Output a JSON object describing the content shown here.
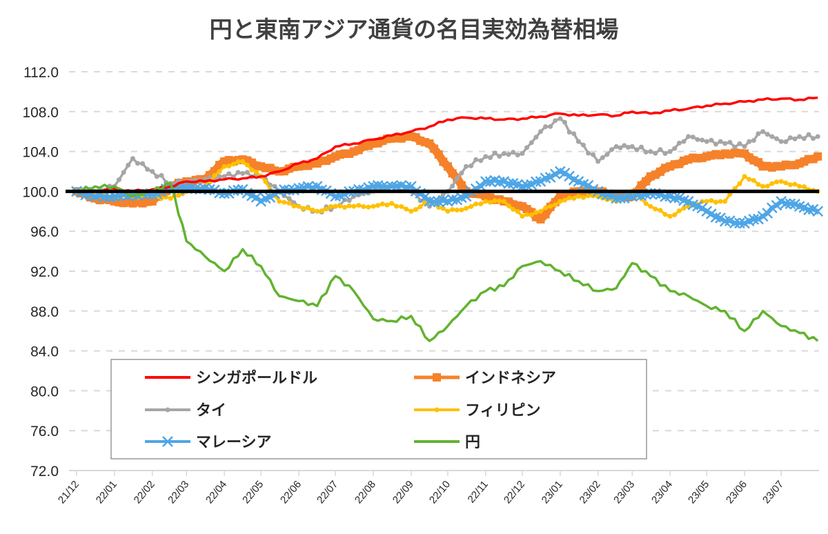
{
  "chart_data": {
    "type": "line",
    "title": "円と東南アジア通貨の名目実効為替相場",
    "xlabel": "",
    "ylabel": "",
    "ylim": [
      72,
      112
    ],
    "yticks": [
      "72.0",
      "76.0",
      "80.0",
      "84.0",
      "88.0",
      "92.0",
      "96.0",
      "100.0",
      "104.0",
      "108.0",
      "112.0"
    ],
    "xticks": [
      "21/12",
      "22/01",
      "22/02",
      "22/03",
      "22/04",
      "22/05",
      "22/06",
      "22/07",
      "22/08",
      "22/09",
      "22/10",
      "22/11",
      "22/12",
      "23/01",
      "23/02",
      "23/03",
      "23/04",
      "23/05",
      "23/06",
      "23/07"
    ],
    "grid": "horizontal dashed",
    "reference_line": 100,
    "legend_position": "bottom-left inside",
    "x": [
      "2021-12-01",
      "2021-12-16",
      "2022-01-01",
      "2022-01-16",
      "2022-02-01",
      "2022-02-16",
      "2022-03-01",
      "2022-03-16",
      "2022-04-01",
      "2022-04-16",
      "2022-05-01",
      "2022-05-16",
      "2022-06-01",
      "2022-06-16",
      "2022-07-01",
      "2022-07-16",
      "2022-08-01",
      "2022-08-16",
      "2022-09-01",
      "2022-09-16",
      "2022-10-01",
      "2022-10-16",
      "2022-11-01",
      "2022-11-16",
      "2022-12-01",
      "2022-12-16",
      "2023-01-01",
      "2023-01-16",
      "2023-02-01",
      "2023-02-16",
      "2023-03-01",
      "2023-03-16",
      "2023-04-01",
      "2023-04-16",
      "2023-05-01",
      "2023-05-16",
      "2023-06-01",
      "2023-06-16",
      "2023-07-01",
      "2023-07-16",
      "2023-07-31"
    ],
    "series": [
      {
        "name": "シンガポールドル",
        "color": "#ff0000",
        "marker": "none",
        "values": [
          100,
          100,
          100.3,
          100,
          100.2,
          100.5,
          101,
          101,
          101.2,
          101.3,
          101.5,
          102,
          102.8,
          103.3,
          104.5,
          104.8,
          105.2,
          105.6,
          106,
          106.5,
          107.2,
          107.4,
          107.3,
          107.2,
          107.3,
          107.5,
          107.8,
          107.6,
          107.7,
          107.6,
          108,
          107.8,
          108.1,
          108.3,
          108.6,
          108.8,
          109,
          109.2,
          109.3,
          109.2,
          109.4
        ]
      },
      {
        "name": "インドネシア",
        "color": "#f5822a",
        "marker": "square",
        "values": [
          100,
          99.3,
          99,
          98.8,
          99,
          100.5,
          101,
          101.2,
          103,
          103.2,
          102.5,
          102,
          102.5,
          102.8,
          103.5,
          104,
          104.8,
          105.3,
          105.5,
          104.8,
          102.5,
          100,
          99.5,
          99,
          98.5,
          97.2,
          99.5,
          100,
          100,
          99.5,
          99.5,
          101.5,
          102.5,
          103.2,
          103.5,
          103.8,
          103.8,
          102.5,
          102.5,
          102.8,
          103.5
        ]
      },
      {
        "name": "タイ",
        "color": "#a6a6a6",
        "marker": "circle",
        "values": [
          100,
          100,
          100.5,
          103.3,
          102,
          100.8,
          101,
          101.2,
          101.5,
          101.8,
          101.5,
          100,
          98.5,
          98,
          98.5,
          99.5,
          100,
          100.5,
          100,
          98.5,
          100,
          102.5,
          103.5,
          103.8,
          103.8,
          106,
          107.3,
          105,
          103,
          104.5,
          104.5,
          104,
          104,
          105.5,
          105,
          104.8,
          104.5,
          106,
          105,
          105.5,
          105.5
        ]
      },
      {
        "name": "フィリピン",
        "color": "#ffc000",
        "marker": "circle",
        "values": [
          100,
          99.7,
          99.5,
          99.5,
          99.5,
          99.3,
          100,
          100.5,
          102.5,
          103,
          101.5,
          99,
          98.5,
          98,
          98.5,
          98.5,
          98.5,
          98.8,
          98,
          99,
          98,
          98.3,
          99,
          99,
          97.5,
          98,
          99,
          99.5,
          99.5,
          99,
          100,
          98.5,
          97.5,
          98.5,
          99,
          99,
          101.5,
          100.5,
          101,
          100.5,
          100
        ]
      },
      {
        "name": "マレーシア",
        "color": "#4ea6e6",
        "marker": "x",
        "values": [
          100,
          99.5,
          99.5,
          99.7,
          99.7,
          100.3,
          100.3,
          100.3,
          99.8,
          100.2,
          99,
          100,
          100.3,
          100.5,
          99.5,
          100,
          100.5,
          100.5,
          100.5,
          99,
          99,
          99.5,
          101,
          101,
          100.5,
          101,
          102,
          101,
          100,
          99.3,
          99.5,
          99.8,
          99.5,
          99,
          98,
          97,
          96.8,
          97.5,
          99,
          98.5,
          98
        ]
      },
      {
        "name": "円",
        "color": "#62b32f",
        "marker": "none",
        "values": [
          100,
          100.5,
          100.5,
          99.5,
          100,
          100.8,
          95,
          93.5,
          92,
          94.2,
          92.5,
          89.5,
          89,
          88.5,
          91.5,
          90,
          87.2,
          87,
          87.5,
          85,
          86.5,
          88.5,
          90,
          90.5,
          92.5,
          93,
          92,
          91,
          90,
          90.3,
          92.8,
          91.5,
          90,
          89.5,
          88.5,
          88,
          86,
          88,
          86.5,
          85.8,
          85
        ]
      }
    ]
  }
}
